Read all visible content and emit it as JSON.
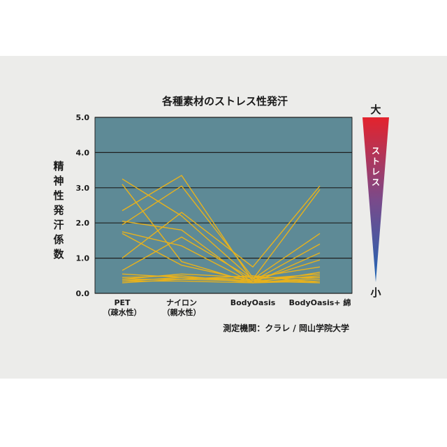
{
  "chart_data": {
    "type": "line",
    "title": "各種素材のストレス性発汗",
    "ylabel": "精神性発汗係数",
    "ylim": [
      0,
      5
    ],
    "yticks": [
      "0.0",
      "1.0",
      "2.0",
      "3.0",
      "4.0",
      "5.0"
    ],
    "grid": true,
    "categories": [
      {
        "name": "PET",
        "sub": "（疎水性）"
      },
      {
        "name": "ナイロン",
        "sub": "（親水性）"
      },
      {
        "name": "BodyOasis",
        "sub": ""
      },
      {
        "name": "BodyOasis+ 綿",
        "sub": ""
      }
    ],
    "series": [
      {
        "values": [
          3.25,
          2.2,
          0.4,
          2.95
        ]
      },
      {
        "values": [
          3.1,
          0.9,
          0.3,
          0.6
        ]
      },
      {
        "values": [
          2.35,
          3.35,
          0.35,
          0.5
        ]
      },
      {
        "values": [
          2.05,
          1.8,
          0.3,
          0.35
        ]
      },
      {
        "values": [
          1.95,
          3.05,
          0.45,
          0.45
        ]
      },
      {
        "values": [
          1.75,
          1.35,
          0.3,
          0.4
        ]
      },
      {
        "values": [
          1.7,
          0.8,
          0.35,
          0.3
        ]
      },
      {
        "values": [
          1.0,
          2.3,
          0.75,
          3.05
        ]
      },
      {
        "values": [
          0.65,
          1.6,
          0.4,
          1.7
        ]
      },
      {
        "values": [
          0.55,
          0.45,
          0.35,
          1.4
        ]
      },
      {
        "values": [
          0.45,
          0.5,
          0.3,
          1.15
        ]
      },
      {
        "values": [
          0.4,
          0.4,
          0.35,
          0.95
        ]
      },
      {
        "values": [
          0.4,
          0.55,
          0.45,
          0.75
        ]
      },
      {
        "values": [
          0.35,
          0.45,
          0.4,
          0.55
        ]
      },
      {
        "values": [
          0.35,
          0.35,
          0.3,
          0.45
        ]
      },
      {
        "values": [
          0.3,
          0.4,
          0.5,
          0.3
        ]
      }
    ],
    "line_color": "#e8b21c",
    "plot_bg": "#5e8a96"
  },
  "stress_scale": {
    "top": "大",
    "bottom": "小",
    "label": "ストレス",
    "color_top": "#e3232d",
    "color_bottom": "#1e66b5"
  },
  "source": "測定機関：クラレ / 岡山学院大学"
}
